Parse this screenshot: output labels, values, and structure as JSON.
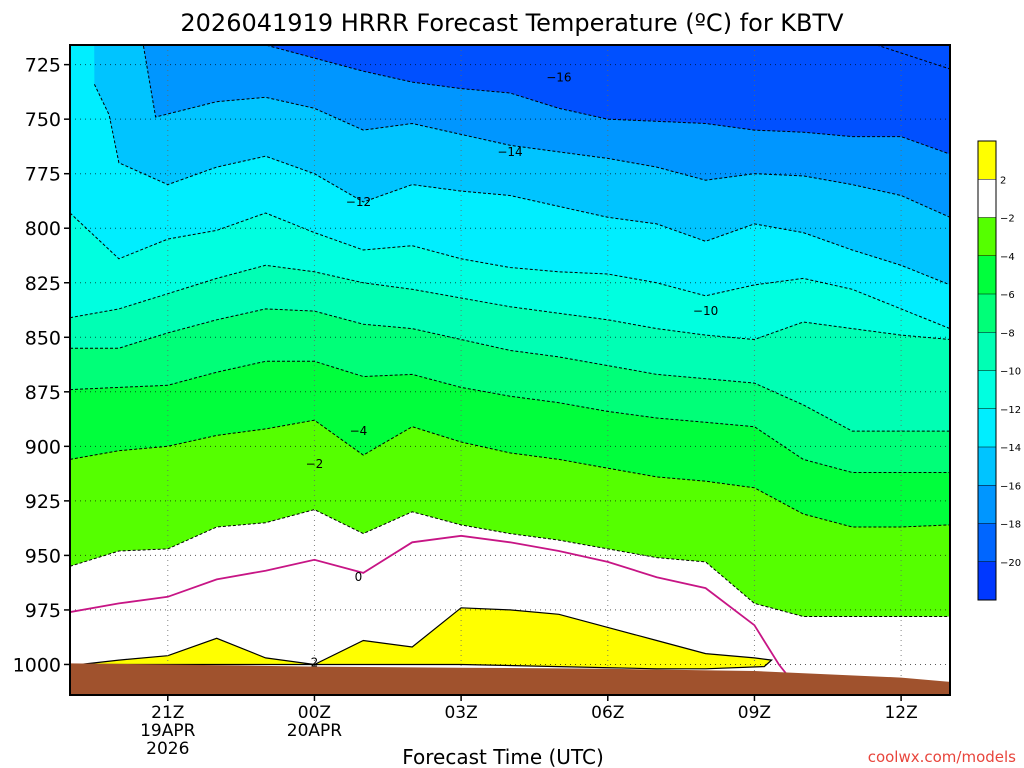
{
  "chart_data": {
    "type": "contour",
    "title": "2026041919 HRRR Forecast Temperature (ºC) for KBTV",
    "xlabel": "Forecast Time (UTC)",
    "ylabel": "",
    "credit": "coolwx.com/models",
    "x_range_hours": [
      -2,
      16
    ],
    "y_range_hpa": [
      1014,
      716
    ],
    "x_ticks": [
      {
        "hour": 0,
        "lines": [
          "21Z",
          "19APR",
          "2026"
        ]
      },
      {
        "hour": 3,
        "lines": [
          "00Z",
          "20APR"
        ]
      },
      {
        "hour": 6,
        "lines": [
          "03Z"
        ]
      },
      {
        "hour": 9,
        "lines": [
          "06Z"
        ]
      },
      {
        "hour": 12,
        "lines": [
          "09Z"
        ]
      },
      {
        "hour": 15,
        "lines": [
          "12Z"
        ]
      }
    ],
    "y_ticks": [
      "725",
      "750",
      "775",
      "800",
      "825",
      "850",
      "875",
      "900",
      "925",
      "950",
      "975",
      "1000"
    ],
    "grid": true,
    "contour_labels": [
      {
        "text": "-16",
        "hour": 8.0,
        "hpa": 731
      },
      {
        "text": "-14",
        "hour": 7.0,
        "hpa": 765
      },
      {
        "text": "-12",
        "hour": 3.9,
        "hpa": 788
      },
      {
        "text": "-10",
        "hour": 11.0,
        "hpa": 838
      },
      {
        "text": "-4",
        "hour": 3.9,
        "hpa": 893
      },
      {
        "text": "-2",
        "hour": 3.0,
        "hpa": 908
      },
      {
        "text": "0",
        "hour": 3.9,
        "hpa": 960
      },
      {
        "text": "2",
        "hour": 3.0,
        "hpa": 999
      }
    ],
    "colorbar": {
      "position": "right",
      "levels": [
        "2",
        "-2",
        "-4",
        "-6",
        "-8",
        "-10",
        "-12",
        "-14",
        "-16",
        "-18",
        "-20"
      ],
      "colors": [
        "#ffff00",
        "#ffffff",
        "#55ff00",
        "#00ff3c",
        "#00ff78",
        "#00ffb4",
        "#00ffe0",
        "#00eeff",
        "#00c4ff",
        "#0096ff",
        "#0066ff",
        "#0038ff"
      ]
    },
    "fill_colors": {
      "t_above_2": "#ffff00",
      "t_0_to_2": "#ffffff",
      "t_m2_to_0": "#ffffff",
      "t_m4_to_m2": "#55ff00",
      "t_m6_to_m4": "#00ff3c",
      "t_m8_to_m6": "#00ff78",
      "t_m10_to_m8": "#00ffb4",
      "t_m12_to_m10": "#00ffe0",
      "t_m14_to_m12": "#00eeff",
      "t_m16_to_m14": "#00c4ff",
      "t_m18_to_m16": "#0096ff",
      "t_below_m18": "#0050ff",
      "ground": "#a0522d",
      "zero_line": "#c71585"
    },
    "isotherms": {
      "t_m2": [
        [
          -2,
          955
        ],
        [
          -1,
          948
        ],
        [
          0,
          947
        ],
        [
          1,
          937
        ],
        [
          2,
          935
        ],
        [
          3,
          929
        ],
        [
          4,
          940
        ],
        [
          5,
          930
        ],
        [
          6,
          936
        ],
        [
          7,
          940
        ],
        [
          8,
          943
        ],
        [
          9,
          947
        ],
        [
          10,
          951
        ],
        [
          11,
          953
        ],
        [
          12,
          972
        ],
        [
          13,
          978
        ],
        [
          14,
          978
        ],
        [
          15,
          978
        ],
        [
          16,
          978
        ]
      ],
      "t_m4": [
        [
          -2,
          906
        ],
        [
          -1,
          902
        ],
        [
          0,
          900
        ],
        [
          1,
          895
        ],
        [
          2,
          892
        ],
        [
          3,
          888
        ],
        [
          4,
          904
        ],
        [
          5,
          891
        ],
        [
          6,
          898
        ],
        [
          7,
          903
        ],
        [
          8,
          906
        ],
        [
          9,
          910
        ],
        [
          10,
          914
        ],
        [
          11,
          916
        ],
        [
          12,
          919
        ],
        [
          13,
          931
        ],
        [
          14,
          937
        ],
        [
          15,
          937
        ],
        [
          16,
          936
        ]
      ],
      "t_m6": [
        [
          -2,
          874
        ],
        [
          -1,
          873
        ],
        [
          0,
          872
        ],
        [
          1,
          866
        ],
        [
          2,
          861
        ],
        [
          3,
          861
        ],
        [
          4,
          868
        ],
        [
          5,
          867
        ],
        [
          6,
          873
        ],
        [
          7,
          877
        ],
        [
          8,
          880
        ],
        [
          9,
          884
        ],
        [
          10,
          887
        ],
        [
          11,
          889
        ],
        [
          12,
          891
        ],
        [
          13,
          906
        ],
        [
          14,
          912
        ],
        [
          15,
          912
        ],
        [
          16,
          912
        ]
      ],
      "t_m8": [
        [
          -2,
          855
        ],
        [
          -1,
          855
        ],
        [
          0,
          848
        ],
        [
          1,
          842
        ],
        [
          2,
          837
        ],
        [
          3,
          838
        ],
        [
          4,
          844
        ],
        [
          5,
          846
        ],
        [
          6,
          851
        ],
        [
          7,
          856
        ],
        [
          8,
          859
        ],
        [
          9,
          863
        ],
        [
          10,
          867
        ],
        [
          11,
          869
        ],
        [
          12,
          871
        ],
        [
          13,
          881
        ],
        [
          14,
          893
        ],
        [
          15,
          893
        ],
        [
          16,
          893
        ]
      ],
      "t_m10": [
        [
          -2,
          841
        ],
        [
          -1,
          837
        ],
        [
          0,
          830
        ],
        [
          1,
          823
        ],
        [
          2,
          817
        ],
        [
          3,
          820
        ],
        [
          4,
          825
        ],
        [
          5,
          828
        ],
        [
          6,
          832
        ],
        [
          7,
          836
        ],
        [
          8,
          839
        ],
        [
          9,
          842
        ],
        [
          10,
          846
        ],
        [
          11,
          849
        ],
        [
          12,
          851
        ],
        [
          13,
          843
        ],
        [
          14,
          846
        ],
        [
          15,
          849
        ],
        [
          16,
          851
        ]
      ],
      "t_m12": [
        [
          -2,
          793
        ],
        [
          -1,
          814
        ],
        [
          0,
          805
        ],
        [
          1,
          801
        ],
        [
          2,
          793
        ],
        [
          3,
          802
        ],
        [
          4,
          810
        ],
        [
          5,
          808
        ],
        [
          6,
          814
        ],
        [
          7,
          818
        ],
        [
          8,
          820
        ],
        [
          9,
          821
        ],
        [
          10,
          825
        ],
        [
          11,
          831
        ],
        [
          12,
          826
        ],
        [
          13,
          823
        ],
        [
          14,
          828
        ],
        [
          15,
          837
        ],
        [
          16,
          846
        ]
      ],
      "t_m14": [
        [
          -1.5,
          734
        ],
        [
          -1.2,
          748
        ],
        [
          -1,
          770
        ],
        [
          0,
          780
        ],
        [
          1,
          772
        ],
        [
          2,
          767
        ],
        [
          3,
          775
        ],
        [
          4,
          788
        ],
        [
          5,
          780
        ],
        [
          6,
          783
        ],
        [
          7,
          785
        ],
        [
          8,
          790
        ],
        [
          9,
          795
        ],
        [
          10,
          798
        ],
        [
          11,
          806
        ],
        [
          12,
          798
        ],
        [
          13,
          802
        ],
        [
          14,
          810
        ],
        [
          15,
          817
        ],
        [
          16,
          826
        ]
      ],
      "t_m16": [
        [
          -1.4,
          716
        ],
        [
          -0.5,
          716
        ],
        [
          -0.25,
          749
        ],
        [
          1,
          742
        ],
        [
          2,
          740
        ],
        [
          3,
          745
        ],
        [
          4,
          755
        ],
        [
          5,
          752
        ],
        [
          6,
          757
        ],
        [
          7,
          762
        ],
        [
          8,
          765
        ],
        [
          9,
          768
        ],
        [
          10,
          772
        ],
        [
          11,
          778
        ],
        [
          12,
          775
        ],
        [
          13,
          776
        ],
        [
          14,
          780
        ],
        [
          15,
          785
        ],
        [
          16,
          795
        ]
      ],
      "t_m18": [
        [
          1,
          716
        ],
        [
          2,
          716
        ],
        [
          3,
          722
        ],
        [
          4,
          728
        ],
        [
          5,
          733
        ],
        [
          6,
          736
        ],
        [
          7,
          738
        ],
        [
          8,
          745
        ],
        [
          9,
          750
        ],
        [
          10,
          751
        ],
        [
          11,
          752
        ],
        [
          12,
          755
        ],
        [
          13,
          756
        ],
        [
          14,
          758
        ],
        [
          15,
          758
        ],
        [
          16,
          766
        ]
      ],
      "t_m20": [
        [
          14.5,
          716
        ],
        [
          16,
          727
        ]
      ]
    },
    "zero_line": [
      [
        -2,
        976
      ],
      [
        -1,
        972
      ],
      [
        0,
        969
      ],
      [
        1,
        961
      ],
      [
        2,
        957
      ],
      [
        3,
        952
      ],
      [
        4,
        958
      ],
      [
        5,
        944
      ],
      [
        6,
        941
      ],
      [
        7,
        944
      ],
      [
        8,
        948
      ],
      [
        9,
        953
      ],
      [
        10,
        960
      ],
      [
        11,
        965
      ],
      [
        12,
        982
      ],
      [
        12.5,
        1000
      ],
      [
        13,
        1014
      ]
    ],
    "yellow_region": [
      [
        -1.8,
        1000
      ],
      [
        -1,
        998
      ],
      [
        0,
        996
      ],
      [
        1,
        988
      ],
      [
        2,
        997
      ],
      [
        3,
        1000
      ],
      [
        4,
        989
      ],
      [
        5,
        992
      ],
      [
        6,
        974
      ],
      [
        7,
        975
      ],
      [
        8,
        977
      ],
      [
        9,
        983
      ],
      [
        10,
        989
      ],
      [
        11,
        995
      ],
      [
        12,
        997
      ],
      [
        12.35,
        998
      ],
      [
        12.2,
        1001
      ],
      [
        11,
        1002
      ],
      [
        10,
        1002
      ],
      [
        8,
        1001
      ],
      [
        6,
        1000
      ],
      [
        4,
        1000
      ],
      [
        3,
        1000
      ],
      [
        1,
        1000
      ],
      [
        -1,
        1000
      ]
    ],
    "surface_pressure": [
      [
        -2,
        999.5
      ],
      [
        0,
        1000
      ],
      [
        3,
        1001
      ],
      [
        6,
        1001.5
      ],
      [
        9,
        1002
      ],
      [
        12,
        1003
      ],
      [
        15,
        1006
      ],
      [
        16,
        1008
      ]
    ]
  }
}
